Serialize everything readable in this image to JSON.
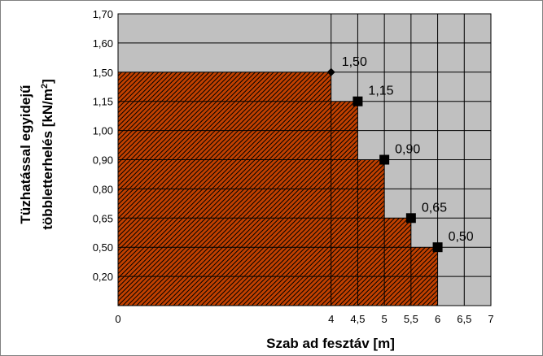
{
  "chart_data": {
    "type": "area",
    "title": "",
    "xlabel": "Szab ad fesztáv [m]",
    "ylabel": [
      "Tüzhatással egyidejű",
      "többletterhelés [kN/m",
      "2",
      "]"
    ],
    "x_ticks": [
      {
        "v": 0,
        "label": "0"
      },
      {
        "v": 4,
        "label": "4"
      },
      {
        "v": 4.5,
        "label": "4,5"
      },
      {
        "v": 5,
        "label": "5"
      },
      {
        "v": 5.5,
        "label": "5,5"
      },
      {
        "v": 6,
        "label": "6"
      },
      {
        "v": 6.5,
        "label": "6,5"
      },
      {
        "v": 7,
        "label": "7"
      }
    ],
    "y_ticks": [
      "1,70",
      "1,60",
      "1,50",
      "1,15",
      "1,00",
      "0,90",
      "0,80",
      "0,65",
      "0,50",
      "0,20"
    ],
    "y_tick_values": [
      1.7,
      1.6,
      1.5,
      1.15,
      1.0,
      0.9,
      0.8,
      0.65,
      0.5,
      0.2
    ],
    "points": [
      {
        "x": 4,
        "y": 1.5,
        "label": "1,50",
        "marker": "diamond"
      },
      {
        "x": 4.5,
        "y": 1.15,
        "label": "1,15",
        "marker": "square"
      },
      {
        "x": 5,
        "y": 0.9,
        "label": "0,90",
        "marker": "square"
      },
      {
        "x": 5.5,
        "y": 0.65,
        "label": "0,65",
        "marker": "square"
      },
      {
        "x": 6,
        "y": 0.5,
        "label": "0,50",
        "marker": "square"
      }
    ],
    "xlim": [
      0,
      7
    ],
    "grid": true,
    "colors": {
      "plot_bg": "#c0c0c0",
      "fill": "#c04000",
      "hatch": "#000000",
      "grid": "#000000",
      "marker": "#000000"
    }
  }
}
